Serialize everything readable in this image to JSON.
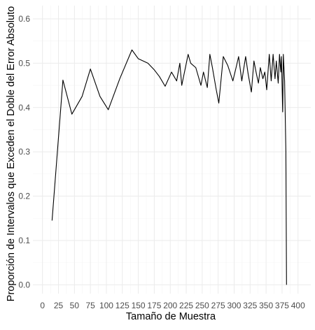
{
  "chart_data": {
    "type": "line",
    "title": "",
    "xlabel": "Tamaño de Muestra",
    "ylabel": "Proporción de Intervalos que Exceden el Doble del Error Absoluto",
    "xlim": [
      -15,
      420
    ],
    "ylim": [
      -0.02,
      0.63
    ],
    "x_ticks": [
      0,
      25,
      50,
      75,
      100,
      125,
      150,
      175,
      200,
      225,
      250,
      275,
      300,
      325,
      350,
      375,
      400
    ],
    "x_tick_labels": [
      "0",
      "25",
      "50",
      "75",
      "100",
      "125",
      "150",
      "175",
      "200",
      "225",
      "250",
      "275",
      "300",
      "325",
      "350",
      "375",
      "400"
    ],
    "y_ticks": [
      0.0,
      0.1,
      0.2,
      0.3,
      0.4,
      0.5,
      0.6
    ],
    "y_tick_labels": [
      "0.0",
      "0.1",
      "0.2",
      "0.3",
      "0.4",
      "0.5",
      "0.6"
    ],
    "grid": true,
    "legend": "none",
    "line_color": "#000000",
    "series": [
      {
        "x": [
          15,
          32,
          46,
          62,
          75,
          90,
          103,
          121,
          140,
          150,
          165,
          175,
          183,
          192,
          202,
          210,
          215,
          218,
          228,
          232,
          240,
          248,
          252,
          258,
          262,
          266,
          272,
          276,
          283,
          290,
          298,
          303,
          307,
          312,
          318,
          322,
          327,
          331,
          335,
          338,
          341,
          345,
          348,
          351,
          355,
          358,
          361,
          364,
          366,
          369,
          371,
          373,
          374,
          376,
          377,
          379,
          381,
          382
        ],
        "y": [
          0.145,
          0.462,
          0.385,
          0.425,
          0.487,
          0.425,
          0.395,
          0.465,
          0.53,
          0.51,
          0.5,
          0.485,
          0.47,
          0.448,
          0.48,
          0.46,
          0.5,
          0.45,
          0.52,
          0.5,
          0.49,
          0.45,
          0.48,
          0.445,
          0.52,
          0.49,
          0.44,
          0.41,
          0.515,
          0.495,
          0.46,
          0.49,
          0.515,
          0.46,
          0.515,
          0.475,
          0.435,
          0.505,
          0.475,
          0.455,
          0.49,
          0.465,
          0.48,
          0.44,
          0.52,
          0.46,
          0.52,
          0.465,
          0.505,
          0.455,
          0.52,
          0.48,
          0.515,
          0.39,
          0.52,
          0.46,
          0.3,
          0.0
        ]
      }
    ]
  }
}
